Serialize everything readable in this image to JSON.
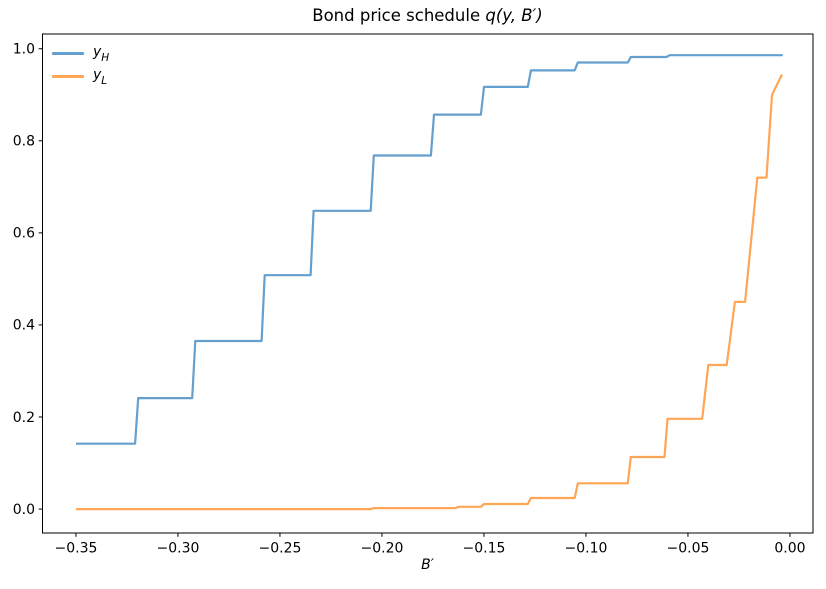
{
  "title": {
    "prefix": "Bond price schedule ",
    "math": "q(y, B′)"
  },
  "xlabel": "B′",
  "legend": [
    {
      "main": "y",
      "sub": "H",
      "color": "#649fce"
    },
    {
      "main": "y",
      "sub": "L",
      "color": "#ffa556"
    }
  ],
  "chart_data": {
    "type": "line",
    "title": "Bond price schedule q(y, B′)",
    "xlabel": "B′",
    "ylabel": "",
    "grid": false,
    "legend_position": "upper left",
    "line_style": "step-like polylines, linewidth 2, alpha ~0.7",
    "xlim": [
      -0.3664,
      0.0113
    ],
    "ylim": [
      -0.052,
      1.032
    ],
    "x_ticks": {
      "values": [
        -0.35,
        -0.3,
        -0.25,
        -0.2,
        -0.15,
        -0.1,
        -0.05,
        0.0
      ],
      "labels": [
        "−0.35",
        "−0.30",
        "−0.25",
        "−0.20",
        "−0.15",
        "−0.10",
        "−0.05",
        "0.00"
      ]
    },
    "y_ticks": {
      "values": [
        0.0,
        0.2,
        0.4,
        0.6,
        0.8,
        1.0
      ],
      "labels": [
        "0.0",
        "0.2",
        "0.4",
        "0.6",
        "0.8",
        "1.0"
      ]
    },
    "series": [
      {
        "name": "y_H",
        "color": "#649fce",
        "points": [
          [
            -0.35,
            0.142
          ],
          [
            -0.321,
            0.142
          ],
          [
            -0.3195,
            0.241
          ],
          [
            -0.293,
            0.241
          ],
          [
            -0.2915,
            0.365
          ],
          [
            -0.259,
            0.365
          ],
          [
            -0.2575,
            0.508
          ],
          [
            -0.235,
            0.508
          ],
          [
            -0.2335,
            0.648
          ],
          [
            -0.2055,
            0.648
          ],
          [
            -0.204,
            0.768
          ],
          [
            -0.176,
            0.768
          ],
          [
            -0.1745,
            0.857
          ],
          [
            -0.1515,
            0.857
          ],
          [
            -0.15,
            0.917
          ],
          [
            -0.1285,
            0.917
          ],
          [
            -0.127,
            0.953
          ],
          [
            -0.1055,
            0.953
          ],
          [
            -0.104,
            0.97
          ],
          [
            -0.0795,
            0.97
          ],
          [
            -0.078,
            0.982
          ],
          [
            -0.0605,
            0.982
          ],
          [
            -0.059,
            0.986
          ],
          [
            -0.0035,
            0.986
          ]
        ]
      },
      {
        "name": "y_L",
        "color": "#ffa556",
        "points": [
          [
            -0.35,
            0.0
          ],
          [
            -0.2055,
            0.0
          ],
          [
            -0.204,
            0.002
          ],
          [
            -0.164,
            0.002
          ],
          [
            -0.1625,
            0.005
          ],
          [
            -0.1515,
            0.005
          ],
          [
            -0.15,
            0.011
          ],
          [
            -0.1285,
            0.011
          ],
          [
            -0.127,
            0.024
          ],
          [
            -0.1055,
            0.024
          ],
          [
            -0.104,
            0.056
          ],
          [
            -0.0795,
            0.056
          ],
          [
            -0.078,
            0.113
          ],
          [
            -0.0615,
            0.113
          ],
          [
            -0.06,
            0.196
          ],
          [
            -0.043,
            0.196
          ],
          [
            -0.04,
            0.313
          ],
          [
            -0.031,
            0.313
          ],
          [
            -0.027,
            0.45
          ],
          [
            -0.022,
            0.45
          ],
          [
            -0.016,
            0.72
          ],
          [
            -0.0115,
            0.72
          ],
          [
            -0.0088,
            0.9
          ],
          [
            -0.0039,
            0.944
          ]
        ]
      }
    ]
  }
}
